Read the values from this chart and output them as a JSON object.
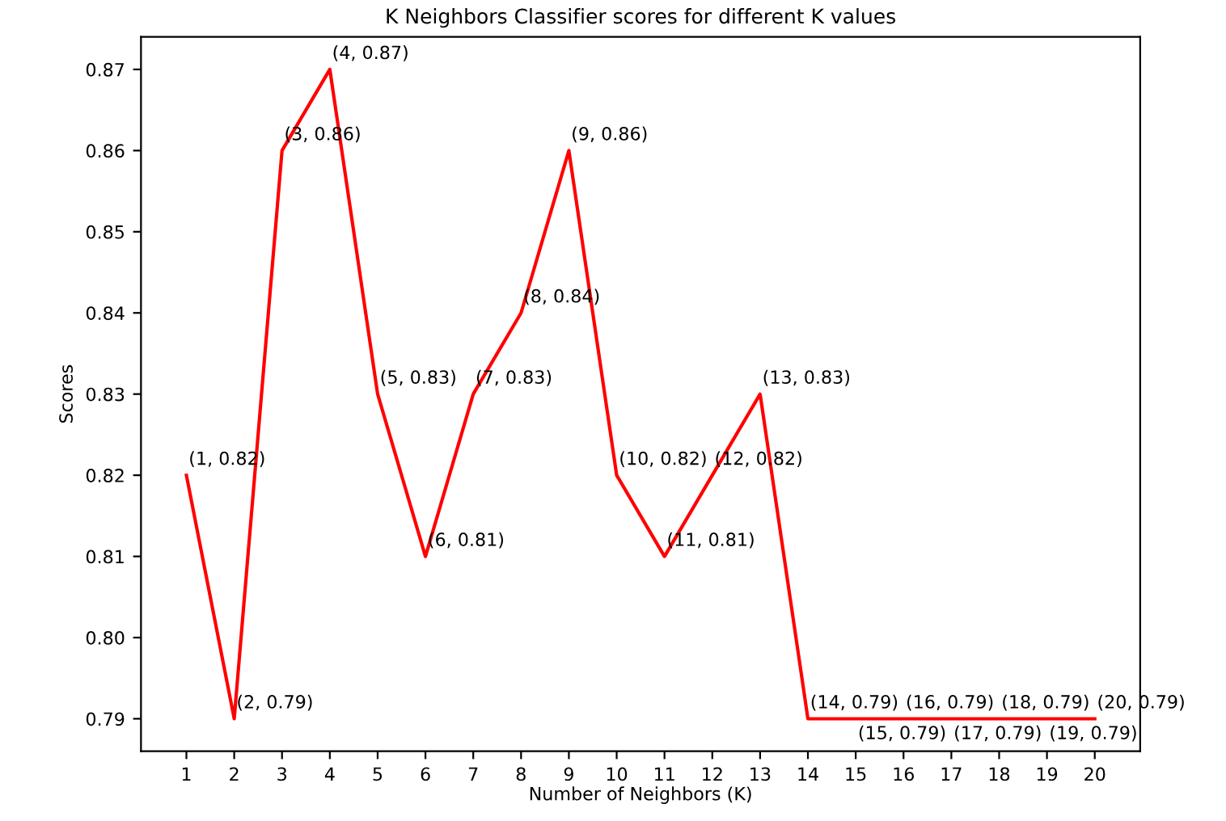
{
  "chart_data": {
    "type": "line",
    "title": "K Neighbors Classifier scores for different K values",
    "xlabel": "Number of Neighbors (K)",
    "ylabel": "Scores",
    "x": [
      1,
      2,
      3,
      4,
      5,
      6,
      7,
      8,
      9,
      10,
      11,
      12,
      13,
      14,
      15,
      16,
      17,
      18,
      19,
      20
    ],
    "series": [
      {
        "color": "#ff0000",
        "values": [
          0.82,
          0.79,
          0.86,
          0.87,
          0.83,
          0.81,
          0.83,
          0.84,
          0.86,
          0.82,
          0.81,
          0.82,
          0.83,
          0.79,
          0.79,
          0.79,
          0.79,
          0.79,
          0.79,
          0.79
        ],
        "value_labels": [
          "(1, 0.82)",
          "(2, 0.79)",
          "(3, 0.86)",
          "(4, 0.87)",
          "(5, 0.83)",
          "(6, 0.81)",
          "(7, 0.83)",
          "(8, 0.84)",
          "(9, 0.86)",
          "(10, 0.82)",
          "(11, 0.81)",
          "(12, 0.82)",
          "(13, 0.83)",
          "(14, 0.79)",
          "(15, 0.79)",
          "(16, 0.79)",
          "(17, 0.79)",
          "(18, 0.79)",
          "(19, 0.79)",
          "(20, 0.79)"
        ]
      }
    ],
    "xlim": [
      0.05,
      20.95
    ],
    "ylim": [
      0.786,
      0.874
    ],
    "xticks": [
      1,
      2,
      3,
      4,
      5,
      6,
      7,
      8,
      9,
      10,
      11,
      12,
      13,
      14,
      15,
      16,
      17,
      18,
      19,
      20
    ],
    "yticks": [
      0.79,
      {
        "value": 0.8,
        "label": "0.80"
      },
      0.81,
      0.82,
      0.83,
      0.84,
      0.85,
      0.86,
      0.87
    ],
    "grid": false,
    "legend": false,
    "marker": "none",
    "line_style": "solid"
  }
}
